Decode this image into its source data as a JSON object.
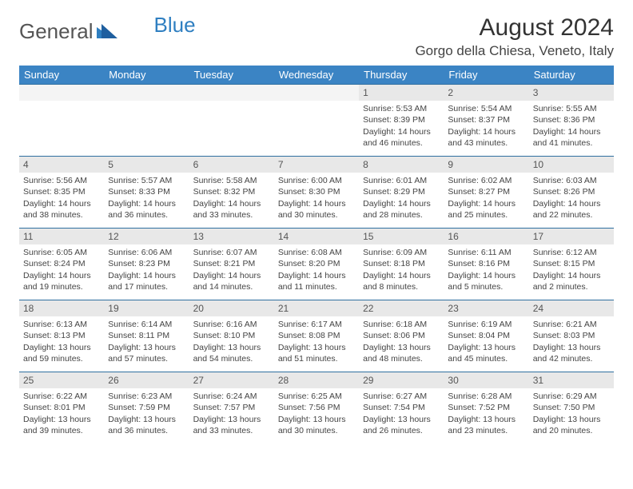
{
  "brand": {
    "part1": "General",
    "part2": "Blue"
  },
  "title": "August 2024",
  "location": "Gorgo della Chiesa, Veneto, Italy",
  "colors": {
    "header_bg": "#3b84c4",
    "header_text": "#ffffff",
    "daynum_bg": "#e8e8e8",
    "row_divider": "#2f6fa0",
    "logo_blue": "#2f7fc1"
  },
  "day_headers": [
    "Sunday",
    "Monday",
    "Tuesday",
    "Wednesday",
    "Thursday",
    "Friday",
    "Saturday"
  ],
  "weeks": [
    [
      {
        "empty": true
      },
      {
        "empty": true
      },
      {
        "empty": true
      },
      {
        "empty": true
      },
      {
        "num": "1",
        "sunrise": "Sunrise: 5:53 AM",
        "sunset": "Sunset: 8:39 PM",
        "daylight": "Daylight: 14 hours and 46 minutes."
      },
      {
        "num": "2",
        "sunrise": "Sunrise: 5:54 AM",
        "sunset": "Sunset: 8:37 PM",
        "daylight": "Daylight: 14 hours and 43 minutes."
      },
      {
        "num": "3",
        "sunrise": "Sunrise: 5:55 AM",
        "sunset": "Sunset: 8:36 PM",
        "daylight": "Daylight: 14 hours and 41 minutes."
      }
    ],
    [
      {
        "num": "4",
        "sunrise": "Sunrise: 5:56 AM",
        "sunset": "Sunset: 8:35 PM",
        "daylight": "Daylight: 14 hours and 38 minutes."
      },
      {
        "num": "5",
        "sunrise": "Sunrise: 5:57 AM",
        "sunset": "Sunset: 8:33 PM",
        "daylight": "Daylight: 14 hours and 36 minutes."
      },
      {
        "num": "6",
        "sunrise": "Sunrise: 5:58 AM",
        "sunset": "Sunset: 8:32 PM",
        "daylight": "Daylight: 14 hours and 33 minutes."
      },
      {
        "num": "7",
        "sunrise": "Sunrise: 6:00 AM",
        "sunset": "Sunset: 8:30 PM",
        "daylight": "Daylight: 14 hours and 30 minutes."
      },
      {
        "num": "8",
        "sunrise": "Sunrise: 6:01 AM",
        "sunset": "Sunset: 8:29 PM",
        "daylight": "Daylight: 14 hours and 28 minutes."
      },
      {
        "num": "9",
        "sunrise": "Sunrise: 6:02 AM",
        "sunset": "Sunset: 8:27 PM",
        "daylight": "Daylight: 14 hours and 25 minutes."
      },
      {
        "num": "10",
        "sunrise": "Sunrise: 6:03 AM",
        "sunset": "Sunset: 8:26 PM",
        "daylight": "Daylight: 14 hours and 22 minutes."
      }
    ],
    [
      {
        "num": "11",
        "sunrise": "Sunrise: 6:05 AM",
        "sunset": "Sunset: 8:24 PM",
        "daylight": "Daylight: 14 hours and 19 minutes."
      },
      {
        "num": "12",
        "sunrise": "Sunrise: 6:06 AM",
        "sunset": "Sunset: 8:23 PM",
        "daylight": "Daylight: 14 hours and 17 minutes."
      },
      {
        "num": "13",
        "sunrise": "Sunrise: 6:07 AM",
        "sunset": "Sunset: 8:21 PM",
        "daylight": "Daylight: 14 hours and 14 minutes."
      },
      {
        "num": "14",
        "sunrise": "Sunrise: 6:08 AM",
        "sunset": "Sunset: 8:20 PM",
        "daylight": "Daylight: 14 hours and 11 minutes."
      },
      {
        "num": "15",
        "sunrise": "Sunrise: 6:09 AM",
        "sunset": "Sunset: 8:18 PM",
        "daylight": "Daylight: 14 hours and 8 minutes."
      },
      {
        "num": "16",
        "sunrise": "Sunrise: 6:11 AM",
        "sunset": "Sunset: 8:16 PM",
        "daylight": "Daylight: 14 hours and 5 minutes."
      },
      {
        "num": "17",
        "sunrise": "Sunrise: 6:12 AM",
        "sunset": "Sunset: 8:15 PM",
        "daylight": "Daylight: 14 hours and 2 minutes."
      }
    ],
    [
      {
        "num": "18",
        "sunrise": "Sunrise: 6:13 AM",
        "sunset": "Sunset: 8:13 PM",
        "daylight": "Daylight: 13 hours and 59 minutes."
      },
      {
        "num": "19",
        "sunrise": "Sunrise: 6:14 AM",
        "sunset": "Sunset: 8:11 PM",
        "daylight": "Daylight: 13 hours and 57 minutes."
      },
      {
        "num": "20",
        "sunrise": "Sunrise: 6:16 AM",
        "sunset": "Sunset: 8:10 PM",
        "daylight": "Daylight: 13 hours and 54 minutes."
      },
      {
        "num": "21",
        "sunrise": "Sunrise: 6:17 AM",
        "sunset": "Sunset: 8:08 PM",
        "daylight": "Daylight: 13 hours and 51 minutes."
      },
      {
        "num": "22",
        "sunrise": "Sunrise: 6:18 AM",
        "sunset": "Sunset: 8:06 PM",
        "daylight": "Daylight: 13 hours and 48 minutes."
      },
      {
        "num": "23",
        "sunrise": "Sunrise: 6:19 AM",
        "sunset": "Sunset: 8:04 PM",
        "daylight": "Daylight: 13 hours and 45 minutes."
      },
      {
        "num": "24",
        "sunrise": "Sunrise: 6:21 AM",
        "sunset": "Sunset: 8:03 PM",
        "daylight": "Daylight: 13 hours and 42 minutes."
      }
    ],
    [
      {
        "num": "25",
        "sunrise": "Sunrise: 6:22 AM",
        "sunset": "Sunset: 8:01 PM",
        "daylight": "Daylight: 13 hours and 39 minutes."
      },
      {
        "num": "26",
        "sunrise": "Sunrise: 6:23 AM",
        "sunset": "Sunset: 7:59 PM",
        "daylight": "Daylight: 13 hours and 36 minutes."
      },
      {
        "num": "27",
        "sunrise": "Sunrise: 6:24 AM",
        "sunset": "Sunset: 7:57 PM",
        "daylight": "Daylight: 13 hours and 33 minutes."
      },
      {
        "num": "28",
        "sunrise": "Sunrise: 6:25 AM",
        "sunset": "Sunset: 7:56 PM",
        "daylight": "Daylight: 13 hours and 30 minutes."
      },
      {
        "num": "29",
        "sunrise": "Sunrise: 6:27 AM",
        "sunset": "Sunset: 7:54 PM",
        "daylight": "Daylight: 13 hours and 26 minutes."
      },
      {
        "num": "30",
        "sunrise": "Sunrise: 6:28 AM",
        "sunset": "Sunset: 7:52 PM",
        "daylight": "Daylight: 13 hours and 23 minutes."
      },
      {
        "num": "31",
        "sunrise": "Sunrise: 6:29 AM",
        "sunset": "Sunset: 7:50 PM",
        "daylight": "Daylight: 13 hours and 20 minutes."
      }
    ]
  ]
}
